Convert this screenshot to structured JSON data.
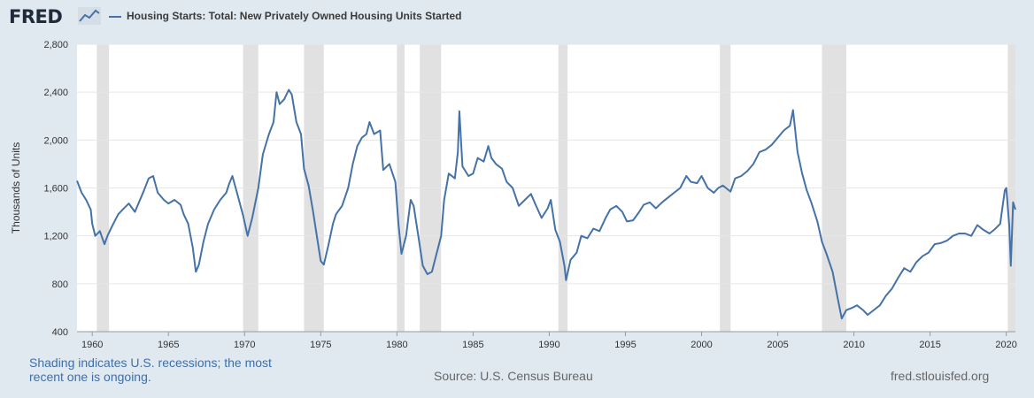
{
  "header": {
    "logo_text": "FRED",
    "logo_icon": "line-chart-icon",
    "legend_label": "Housing Starts: Total: New Privately Owned Housing Units Started"
  },
  "footer": {
    "shading_note": "Shading indicates U.S. recessions; the most recent one is ongoing.",
    "source": "Source: U.S. Census Bureau",
    "site": "fred.stlouisfed.org"
  },
  "colors": {
    "series": "#4572a7",
    "recession": "#e1e1e1",
    "background": "#e1e9f0"
  },
  "chart_data": {
    "type": "line",
    "title": "",
    "xlabel": "",
    "ylabel": "Thousands of Units",
    "xlim": [
      1959.0,
      2020.6
    ],
    "ylim": [
      400,
      2800
    ],
    "yticks": [
      400,
      800,
      1200,
      1600,
      2000,
      2400,
      2800
    ],
    "ytick_labels": [
      "400",
      "800",
      "1,200",
      "1,600",
      "2,000",
      "2,400",
      "2,800"
    ],
    "xticks": [
      1960,
      1965,
      1970,
      1975,
      1980,
      1985,
      1990,
      1995,
      2000,
      2005,
      2010,
      2015,
      2020
    ],
    "grid": true,
    "recessions": [
      [
        1960.3,
        1961.1
      ],
      [
        1969.9,
        1970.9
      ],
      [
        1973.9,
        1975.2
      ],
      [
        1980.0,
        1980.5
      ],
      [
        1981.5,
        1982.9
      ],
      [
        1990.6,
        1991.2
      ],
      [
        2001.2,
        2001.9
      ],
      [
        2007.9,
        2009.5
      ],
      [
        2020.1,
        2020.6
      ]
    ],
    "series": [
      {
        "name": "Housing Starts: Total: New Privately Owned Housing Units Started",
        "points": [
          [
            1959.0,
            1660
          ],
          [
            1959.3,
            1560
          ],
          [
            1959.6,
            1500
          ],
          [
            1959.9,
            1420
          ],
          [
            1960.0,
            1300
          ],
          [
            1960.2,
            1200
          ],
          [
            1960.5,
            1240
          ],
          [
            1960.8,
            1130
          ],
          [
            1961.0,
            1200
          ],
          [
            1961.3,
            1280
          ],
          [
            1961.7,
            1380
          ],
          [
            1962.0,
            1420
          ],
          [
            1962.4,
            1470
          ],
          [
            1962.8,
            1400
          ],
          [
            1963.0,
            1460
          ],
          [
            1963.4,
            1580
          ],
          [
            1963.7,
            1680
          ],
          [
            1964.0,
            1700
          ],
          [
            1964.3,
            1560
          ],
          [
            1964.7,
            1500
          ],
          [
            1965.0,
            1470
          ],
          [
            1965.4,
            1500
          ],
          [
            1965.8,
            1460
          ],
          [
            1966.0,
            1380
          ],
          [
            1966.3,
            1300
          ],
          [
            1966.6,
            1100
          ],
          [
            1966.8,
            900
          ],
          [
            1967.0,
            960
          ],
          [
            1967.3,
            1150
          ],
          [
            1967.6,
            1300
          ],
          [
            1968.0,
            1420
          ],
          [
            1968.4,
            1500
          ],
          [
            1968.8,
            1560
          ],
          [
            1969.0,
            1640
          ],
          [
            1969.2,
            1700
          ],
          [
            1969.5,
            1560
          ],
          [
            1969.9,
            1370
          ],
          [
            1970.2,
            1200
          ],
          [
            1970.5,
            1350
          ],
          [
            1970.9,
            1600
          ],
          [
            1971.2,
            1880
          ],
          [
            1971.6,
            2050
          ],
          [
            1971.9,
            2150
          ],
          [
            1972.1,
            2400
          ],
          [
            1972.3,
            2300
          ],
          [
            1972.6,
            2340
          ],
          [
            1972.9,
            2420
          ],
          [
            1973.1,
            2380
          ],
          [
            1973.4,
            2150
          ],
          [
            1973.7,
            2050
          ],
          [
            1973.9,
            1760
          ],
          [
            1974.2,
            1620
          ],
          [
            1974.5,
            1400
          ],
          [
            1974.8,
            1150
          ],
          [
            1975.0,
            990
          ],
          [
            1975.2,
            960
          ],
          [
            1975.5,
            1120
          ],
          [
            1975.8,
            1300
          ],
          [
            1976.0,
            1380
          ],
          [
            1976.4,
            1450
          ],
          [
            1976.8,
            1600
          ],
          [
            1977.1,
            1800
          ],
          [
            1977.4,
            1950
          ],
          [
            1977.7,
            2020
          ],
          [
            1978.0,
            2050
          ],
          [
            1978.2,
            2150
          ],
          [
            1978.5,
            2050
          ],
          [
            1978.9,
            2080
          ],
          [
            1979.1,
            1750
          ],
          [
            1979.5,
            1800
          ],
          [
            1979.9,
            1650
          ],
          [
            1980.1,
            1300
          ],
          [
            1980.3,
            1050
          ],
          [
            1980.6,
            1200
          ],
          [
            1980.9,
            1500
          ],
          [
            1981.1,
            1450
          ],
          [
            1981.4,
            1200
          ],
          [
            1981.7,
            950
          ],
          [
            1982.0,
            880
          ],
          [
            1982.3,
            900
          ],
          [
            1982.6,
            1050
          ],
          [
            1982.9,
            1200
          ],
          [
            1983.1,
            1500
          ],
          [
            1983.4,
            1720
          ],
          [
            1983.8,
            1680
          ],
          [
            1984.0,
            1900
          ],
          [
            1984.1,
            2240
          ],
          [
            1984.3,
            1780
          ],
          [
            1984.7,
            1700
          ],
          [
            1985.0,
            1720
          ],
          [
            1985.3,
            1850
          ],
          [
            1985.7,
            1820
          ],
          [
            1986.0,
            1950
          ],
          [
            1986.2,
            1850
          ],
          [
            1986.5,
            1800
          ],
          [
            1986.9,
            1760
          ],
          [
            1987.2,
            1650
          ],
          [
            1987.6,
            1600
          ],
          [
            1988.0,
            1450
          ],
          [
            1988.4,
            1500
          ],
          [
            1988.8,
            1550
          ],
          [
            1989.1,
            1460
          ],
          [
            1989.5,
            1350
          ],
          [
            1989.9,
            1430
          ],
          [
            1990.1,
            1500
          ],
          [
            1990.4,
            1250
          ],
          [
            1990.7,
            1150
          ],
          [
            1991.0,
            950
          ],
          [
            1991.1,
            830
          ],
          [
            1991.4,
            1000
          ],
          [
            1991.8,
            1060
          ],
          [
            1992.1,
            1200
          ],
          [
            1992.5,
            1180
          ],
          [
            1992.9,
            1260
          ],
          [
            1993.3,
            1240
          ],
          [
            1993.7,
            1350
          ],
          [
            1994.0,
            1420
          ],
          [
            1994.4,
            1450
          ],
          [
            1994.8,
            1400
          ],
          [
            1995.1,
            1320
          ],
          [
            1995.5,
            1330
          ],
          [
            1995.9,
            1400
          ],
          [
            1996.2,
            1460
          ],
          [
            1996.6,
            1480
          ],
          [
            1997.0,
            1430
          ],
          [
            1997.4,
            1480
          ],
          [
            1997.8,
            1520
          ],
          [
            1998.2,
            1560
          ],
          [
            1998.6,
            1600
          ],
          [
            1999.0,
            1700
          ],
          [
            1999.3,
            1650
          ],
          [
            1999.7,
            1640
          ],
          [
            2000.0,
            1700
          ],
          [
            2000.4,
            1600
          ],
          [
            2000.8,
            1560
          ],
          [
            2001.1,
            1600
          ],
          [
            2001.4,
            1620
          ],
          [
            2001.9,
            1570
          ],
          [
            2002.2,
            1680
          ],
          [
            2002.6,
            1700
          ],
          [
            2003.0,
            1740
          ],
          [
            2003.4,
            1800
          ],
          [
            2003.8,
            1900
          ],
          [
            2004.2,
            1920
          ],
          [
            2004.6,
            1960
          ],
          [
            2005.0,
            2020
          ],
          [
            2005.4,
            2080
          ],
          [
            2005.8,
            2120
          ],
          [
            2006.0,
            2250
          ],
          [
            2006.3,
            1900
          ],
          [
            2006.6,
            1720
          ],
          [
            2006.9,
            1580
          ],
          [
            2007.2,
            1480
          ],
          [
            2007.6,
            1320
          ],
          [
            2007.9,
            1150
          ],
          [
            2008.2,
            1050
          ],
          [
            2008.6,
            900
          ],
          [
            2008.9,
            700
          ],
          [
            2009.2,
            510
          ],
          [
            2009.5,
            580
          ],
          [
            2009.9,
            600
          ],
          [
            2010.2,
            620
          ],
          [
            2010.6,
            580
          ],
          [
            2010.9,
            540
          ],
          [
            2011.3,
            580
          ],
          [
            2011.7,
            620
          ],
          [
            2012.1,
            700
          ],
          [
            2012.5,
            760
          ],
          [
            2012.9,
            850
          ],
          [
            2013.3,
            930
          ],
          [
            2013.7,
            900
          ],
          [
            2014.1,
            980
          ],
          [
            2014.5,
            1030
          ],
          [
            2014.9,
            1060
          ],
          [
            2015.3,
            1130
          ],
          [
            2015.7,
            1140
          ],
          [
            2016.1,
            1160
          ],
          [
            2016.5,
            1200
          ],
          [
            2016.9,
            1220
          ],
          [
            2017.3,
            1220
          ],
          [
            2017.7,
            1200
          ],
          [
            2018.1,
            1290
          ],
          [
            2018.5,
            1250
          ],
          [
            2018.9,
            1220
          ],
          [
            2019.2,
            1250
          ],
          [
            2019.6,
            1300
          ],
          [
            2019.9,
            1580
          ],
          [
            2020.0,
            1600
          ],
          [
            2020.2,
            1280
          ],
          [
            2020.3,
            950
          ],
          [
            2020.45,
            1480
          ],
          [
            2020.6,
            1420
          ]
        ]
      }
    ]
  }
}
